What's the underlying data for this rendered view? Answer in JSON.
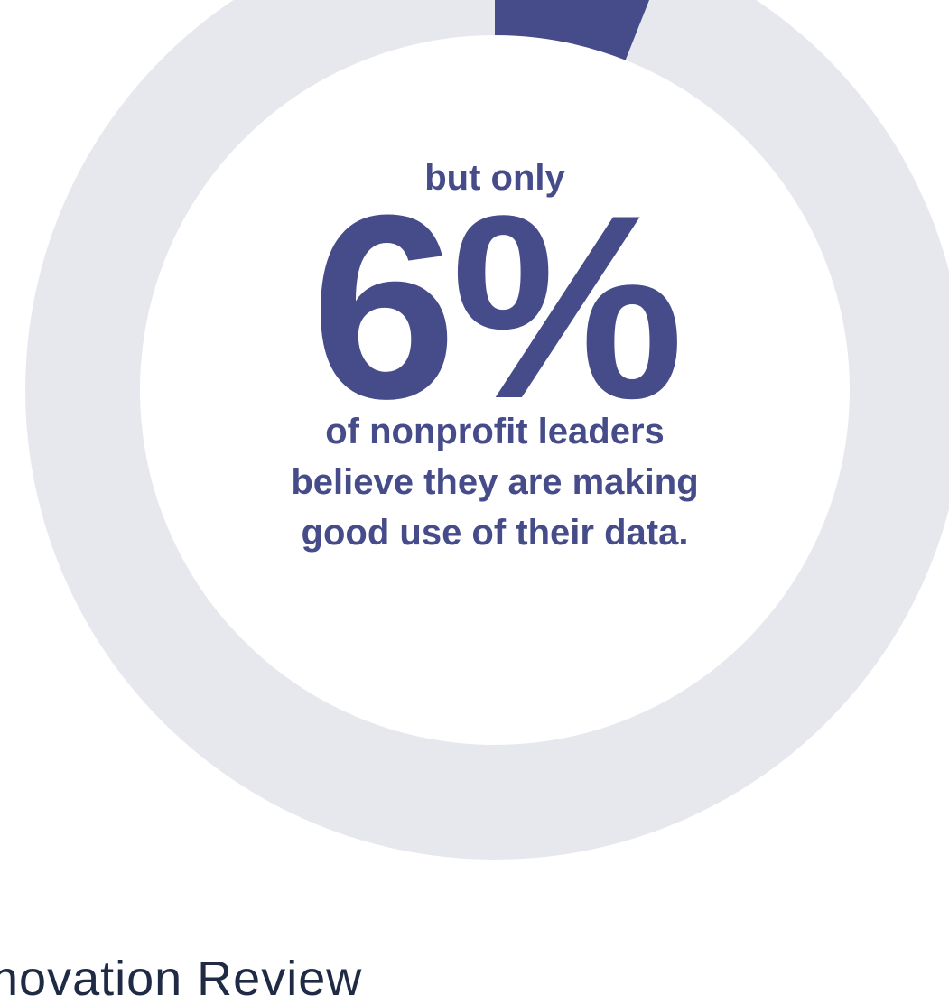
{
  "colors": {
    "accent": "#464c8a",
    "ring": "#e6e8ee",
    "footer_text": "#1f2a44",
    "background": "#ffffff"
  },
  "chart_data": {
    "type": "pie",
    "variant": "donut",
    "values": [
      6,
      94
    ],
    "value_unit": "%",
    "highlight_index": 0,
    "start_angle_deg": 0
  },
  "callout": {
    "lead": "but only",
    "value": "6%",
    "description_lines": [
      "of nonprofit leaders",
      "believe they are making",
      "good use of their data."
    ]
  },
  "footer": {
    "text": "novation Review"
  }
}
